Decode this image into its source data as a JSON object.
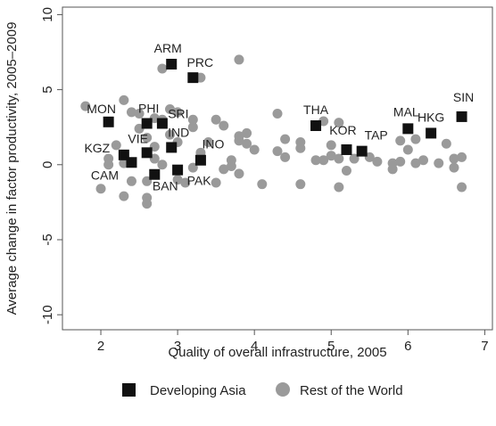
{
  "chart_data": {
    "type": "scatter",
    "xlabel": "Quality of overall infrastructure, 2005",
    "ylabel": "Average change in factor productivity, 2005–2009",
    "xlim": [
      1.5,
      7.1
    ],
    "ylim": [
      -11,
      10.5
    ],
    "xticks": [
      "2",
      "3",
      "4",
      "5",
      "6",
      "7"
    ],
    "yticks": [
      "-10",
      "-5",
      "0",
      "5",
      "10"
    ],
    "grid": false,
    "legend_position": "bottom",
    "series": [
      {
        "name": "Developing Asia",
        "marker": "square",
        "color": "#111111",
        "points": [
          {
            "label": "ARM",
            "x": 2.92,
            "y": 6.7
          },
          {
            "label": "PRC",
            "x": 3.2,
            "y": 5.8
          },
          {
            "label": "MON",
            "x": 2.1,
            "y": 2.85
          },
          {
            "label": "PHI",
            "x": 2.6,
            "y": 2.75
          },
          {
            "label": "SRI",
            "x": 2.8,
            "y": 2.75
          },
          {
            "label": "IND",
            "x": 2.92,
            "y": 1.15
          },
          {
            "label": "VIE",
            "x": 2.6,
            "y": 0.8
          },
          {
            "label": "KGZ",
            "x": 2.3,
            "y": 0.65
          },
          {
            "label": "INO",
            "x": 3.3,
            "y": 0.3
          },
          {
            "label": "CAM",
            "x": 2.4,
            "y": 0.15
          },
          {
            "label": "PAK",
            "x": 3.0,
            "y": -0.35
          },
          {
            "label": "BAN",
            "x": 2.7,
            "y": -0.65
          },
          {
            "label": "THA",
            "x": 4.8,
            "y": 2.6
          },
          {
            "label": "KOR",
            "x": 5.2,
            "y": 1.0
          },
          {
            "label": "TAP",
            "x": 5.4,
            "y": 0.9
          },
          {
            "label": "MAL",
            "x": 6.0,
            "y": 2.4
          },
          {
            "label": "HKG",
            "x": 6.3,
            "y": 2.1
          },
          {
            "label": "SIN",
            "x": 6.7,
            "y": 3.2
          }
        ]
      },
      {
        "name": "Rest of the World",
        "marker": "circle",
        "color": "#9a9a9a",
        "points": [
          {
            "x": 1.8,
            "y": 3.9
          },
          {
            "x": 2.0,
            "y": -1.6
          },
          {
            "x": 2.1,
            "y": 0.4
          },
          {
            "x": 2.1,
            "y": 0.0
          },
          {
            "x": 2.2,
            "y": 1.3
          },
          {
            "x": 2.3,
            "y": 4.3
          },
          {
            "x": 2.3,
            "y": 0.1
          },
          {
            "x": 2.3,
            "y": -2.1
          },
          {
            "x": 2.4,
            "y": 3.5
          },
          {
            "x": 2.4,
            "y": -1.1
          },
          {
            "x": 2.5,
            "y": 3.4
          },
          {
            "x": 2.5,
            "y": 2.4
          },
          {
            "x": 2.6,
            "y": 1.8
          },
          {
            "x": 2.6,
            "y": -1.1
          },
          {
            "x": 2.6,
            "y": -2.2
          },
          {
            "x": 2.6,
            "y": -2.6
          },
          {
            "x": 2.7,
            "y": 3.1
          },
          {
            "x": 2.7,
            "y": 1.2
          },
          {
            "x": 2.7,
            "y": 0.4
          },
          {
            "x": 2.8,
            "y": 6.4
          },
          {
            "x": 2.8,
            "y": 3.0
          },
          {
            "x": 2.8,
            "y": 0.0
          },
          {
            "x": 2.9,
            "y": 3.7
          },
          {
            "x": 2.9,
            "y": 2.0
          },
          {
            "x": 3.0,
            "y": 3.5
          },
          {
            "x": 3.0,
            "y": 1.5
          },
          {
            "x": 3.0,
            "y": -1.0
          },
          {
            "x": 3.1,
            "y": -1.2
          },
          {
            "x": 3.2,
            "y": 3.0
          },
          {
            "x": 3.2,
            "y": 2.5
          },
          {
            "x": 3.2,
            "y": -0.2
          },
          {
            "x": 3.3,
            "y": 5.8
          },
          {
            "x": 3.3,
            "y": 0.8
          },
          {
            "x": 3.4,
            "y": 1.5
          },
          {
            "x": 3.5,
            "y": 3.0
          },
          {
            "x": 3.5,
            "y": -1.2
          },
          {
            "x": 3.6,
            "y": 2.6
          },
          {
            "x": 3.6,
            "y": -0.3
          },
          {
            "x": 3.7,
            "y": -0.1
          },
          {
            "x": 3.7,
            "y": 0.3
          },
          {
            "x": 3.8,
            "y": 7.0
          },
          {
            "x": 3.8,
            "y": 1.9
          },
          {
            "x": 3.8,
            "y": 1.6
          },
          {
            "x": 3.8,
            "y": -0.6
          },
          {
            "x": 3.9,
            "y": 2.1
          },
          {
            "x": 3.9,
            "y": 1.4
          },
          {
            "x": 4.0,
            "y": 1.0
          },
          {
            "x": 4.1,
            "y": -1.3
          },
          {
            "x": 4.3,
            "y": 3.4
          },
          {
            "x": 4.3,
            "y": 0.9
          },
          {
            "x": 4.4,
            "y": 1.7
          },
          {
            "x": 4.4,
            "y": 0.5
          },
          {
            "x": 4.6,
            "y": 1.5
          },
          {
            "x": 4.6,
            "y": 1.1
          },
          {
            "x": 4.6,
            "y": -1.3
          },
          {
            "x": 4.8,
            "y": 0.3
          },
          {
            "x": 4.9,
            "y": 2.9
          },
          {
            "x": 4.9,
            "y": 0.3
          },
          {
            "x": 5.0,
            "y": 1.3
          },
          {
            "x": 5.0,
            "y": 0.6
          },
          {
            "x": 5.1,
            "y": 2.8
          },
          {
            "x": 5.1,
            "y": 0.4
          },
          {
            "x": 5.1,
            "y": -1.5
          },
          {
            "x": 5.2,
            "y": -0.4
          },
          {
            "x": 5.3,
            "y": 0.4
          },
          {
            "x": 5.5,
            "y": 0.5
          },
          {
            "x": 5.6,
            "y": 0.2
          },
          {
            "x": 5.8,
            "y": 0.1
          },
          {
            "x": 5.8,
            "y": -0.3
          },
          {
            "x": 5.9,
            "y": 1.6
          },
          {
            "x": 5.9,
            "y": 0.2
          },
          {
            "x": 6.0,
            "y": 1.0
          },
          {
            "x": 6.1,
            "y": 1.7
          },
          {
            "x": 6.1,
            "y": 0.1
          },
          {
            "x": 6.2,
            "y": 0.3
          },
          {
            "x": 6.4,
            "y": 0.1
          },
          {
            "x": 6.5,
            "y": 1.4
          },
          {
            "x": 6.6,
            "y": 0.4
          },
          {
            "x": 6.6,
            "y": -0.2
          },
          {
            "x": 6.7,
            "y": 0.5
          },
          {
            "x": 6.7,
            "y": -1.5
          }
        ]
      }
    ]
  }
}
